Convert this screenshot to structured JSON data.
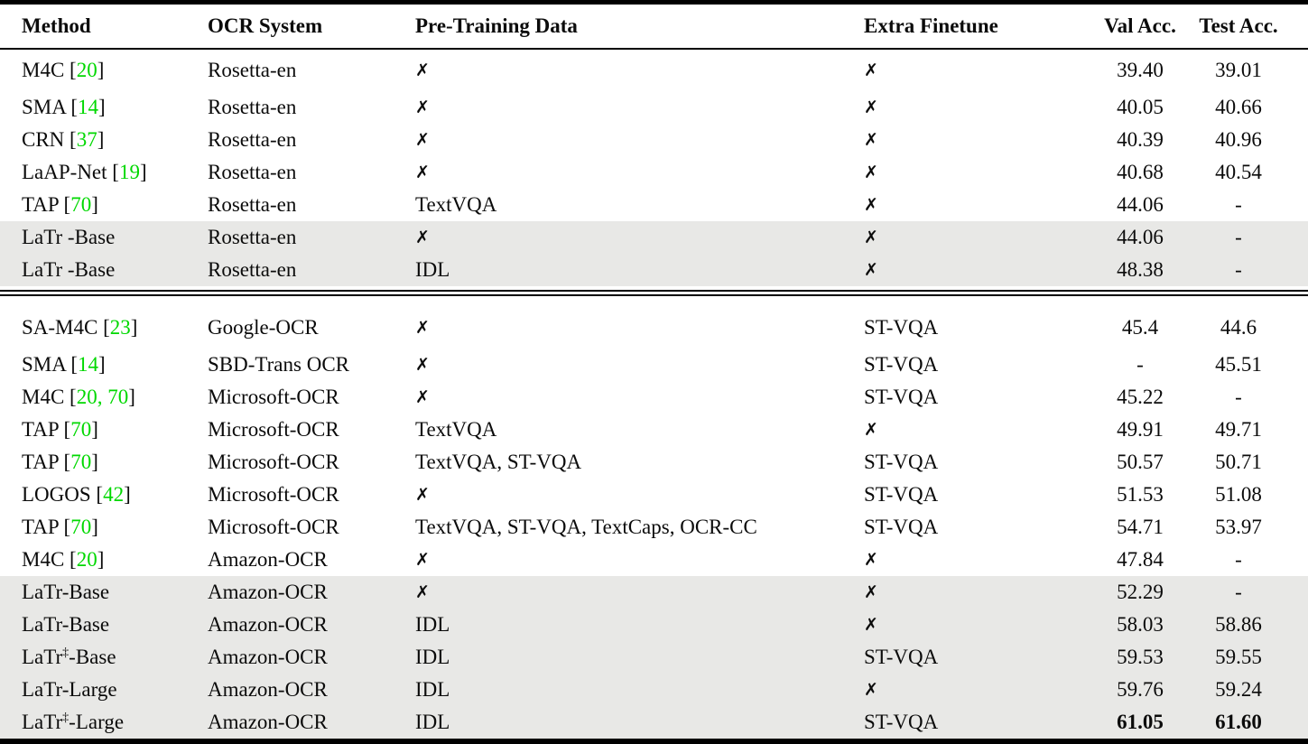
{
  "colors": {
    "citation": "#00D800",
    "highlight": "#E8E8E6",
    "rule": "#000000",
    "text": "#0B0B0B"
  },
  "symbols": {
    "xmark": "✗",
    "dash": "-",
    "dagger": "‡"
  },
  "columns": [
    {
      "label": "Method"
    },
    {
      "label": "OCR System"
    },
    {
      "label": "Pre-Training Data"
    },
    {
      "label": "Extra Finetune"
    },
    {
      "label": "Val Acc."
    },
    {
      "label": "Test Acc."
    }
  ],
  "sections": [
    {
      "rows": [
        {
          "method": "M4C",
          "cite": "20",
          "ocr": "Rosetta-en",
          "pretrain": "✗",
          "finetune": "✗",
          "val": "39.40",
          "test": "39.01",
          "highlight": false,
          "bold": false
        },
        {
          "method": "SMA",
          "cite": "14",
          "ocr": "Rosetta-en",
          "pretrain": "✗",
          "finetune": "✗",
          "val": "40.05",
          "test": "40.66",
          "highlight": false,
          "bold": false
        },
        {
          "method": "CRN",
          "cite": "37",
          "ocr": "Rosetta-en",
          "pretrain": "✗",
          "finetune": "✗",
          "val": "40.39",
          "test": "40.96",
          "highlight": false,
          "bold": false
        },
        {
          "method": "LaAP-Net",
          "cite": "19",
          "ocr": "Rosetta-en",
          "pretrain": "✗",
          "finetune": "✗",
          "val": "40.68",
          "test": "40.54",
          "highlight": false,
          "bold": false
        },
        {
          "method": "TAP",
          "cite": "70",
          "ocr": "Rosetta-en",
          "pretrain": "TextVQA",
          "finetune": "✗",
          "val": "44.06",
          "test": "-",
          "highlight": false,
          "bold": false
        },
        {
          "method": "LaTr -Base",
          "cite": "",
          "ocr": "Rosetta-en",
          "pretrain": "✗",
          "finetune": "✗",
          "val": "44.06",
          "test": "-",
          "highlight": true,
          "bold": false
        },
        {
          "method": "LaTr -Base",
          "cite": "",
          "ocr": "Rosetta-en",
          "pretrain": "IDL",
          "finetune": "✗",
          "val": "48.38",
          "test": "-",
          "highlight": true,
          "bold": false
        }
      ]
    },
    {
      "rows": [
        {
          "method": "SA-M4C",
          "cite": "23",
          "ocr": "Google-OCR",
          "pretrain": "✗",
          "finetune": "ST-VQA",
          "val": "45.4",
          "test": "44.6",
          "highlight": false,
          "bold": false
        },
        {
          "method": "SMA",
          "cite": "14",
          "ocr": "SBD-Trans OCR",
          "pretrain": "✗",
          "finetune": "ST-VQA",
          "val": "-",
          "test": "45.51",
          "highlight": false,
          "bold": false
        },
        {
          "method": "M4C",
          "cite": "20, 70",
          "ocr": "Microsoft-OCR",
          "pretrain": "✗",
          "finetune": "ST-VQA",
          "val": "45.22",
          "test": "-",
          "highlight": false,
          "bold": false
        },
        {
          "method": "TAP",
          "cite": "70",
          "ocr": "Microsoft-OCR",
          "pretrain": "TextVQA",
          "finetune": "✗",
          "val": "49.91",
          "test": "49.71",
          "highlight": false,
          "bold": false
        },
        {
          "method": "TAP",
          "cite": "70",
          "ocr": "Microsoft-OCR",
          "pretrain": "TextVQA, ST-VQA",
          "finetune": "ST-VQA",
          "val": "50.57",
          "test": "50.71",
          "highlight": false,
          "bold": false
        },
        {
          "method": "LOGOS",
          "cite": "42",
          "ocr": "Microsoft-OCR",
          "pretrain": "✗",
          "finetune": "ST-VQA",
          "val": "51.53",
          "test": "51.08",
          "highlight": false,
          "bold": false
        },
        {
          "method": "TAP",
          "cite": "70",
          "ocr": "Microsoft-OCR",
          "pretrain": "TextVQA, ST-VQA, TextCaps, OCR-CC",
          "finetune": "ST-VQA",
          "val": "54.71",
          "test": "53.97",
          "highlight": false,
          "bold": false
        },
        {
          "method": "M4C",
          "cite": "20",
          "ocr": "Amazon-OCR",
          "pretrain": "✗",
          "finetune": "✗",
          "val": "47.84",
          "test": "-",
          "highlight": false,
          "bold": false
        },
        {
          "method": "LaTr-Base",
          "cite": "",
          "ocr": "Amazon-OCR",
          "pretrain": "✗",
          "finetune": "✗",
          "val": "52.29",
          "test": "-",
          "highlight": true,
          "bold": false
        },
        {
          "method": "LaTr-Base",
          "cite": "",
          "ocr": "Amazon-OCR",
          "pretrain": "IDL",
          "finetune": "✗",
          "val": "58.03",
          "test": "58.86",
          "highlight": true,
          "bold": false
        },
        {
          "method": "LaTr",
          "sup": "‡",
          "method2": "-Base",
          "cite": "",
          "ocr": "Amazon-OCR",
          "pretrain": "IDL",
          "finetune": "ST-VQA",
          "val": "59.53",
          "test": "59.55",
          "highlight": true,
          "bold": false
        },
        {
          "method": "LaTr-Large",
          "cite": "",
          "ocr": "Amazon-OCR",
          "pretrain": "IDL",
          "finetune": "✗",
          "val": "59.76",
          "test": "59.24",
          "highlight": true,
          "bold": false
        },
        {
          "method": "LaTr",
          "sup": "‡",
          "method2": "-Large",
          "cite": "",
          "ocr": "Amazon-OCR",
          "pretrain": "IDL",
          "finetune": "ST-VQA",
          "val": "61.05",
          "test": "61.60",
          "highlight": true,
          "bold": true
        }
      ]
    }
  ]
}
